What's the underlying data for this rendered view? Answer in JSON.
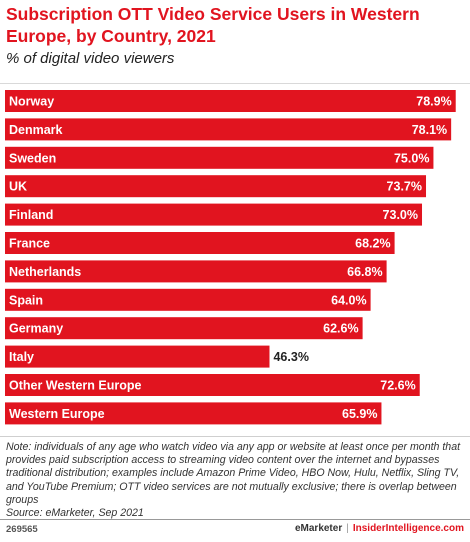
{
  "header": {
    "title": "Subscription OTT Video Service Users in Western Europe, by Country, 2021",
    "subtitle": "% of digital video viewers"
  },
  "chart_data": {
    "type": "bar",
    "orientation": "horizontal",
    "categories": [
      "Norway",
      "Denmark",
      "Sweden",
      "UK",
      "Finland",
      "France",
      "Netherlands",
      "Spain",
      "Germany",
      "Italy",
      "Other Western Europe",
      "Western Europe"
    ],
    "values": [
      78.9,
      78.1,
      75.0,
      73.7,
      73.0,
      68.2,
      66.8,
      64.0,
      62.6,
      46.3,
      72.6,
      65.9
    ],
    "value_labels": [
      "78.9%",
      "78.1%",
      "75.0%",
      "73.7%",
      "73.0%",
      "68.2%",
      "66.8%",
      "64.0%",
      "62.6%",
      "46.3%",
      "72.6%",
      "65.9%"
    ],
    "xlim": [
      0,
      80
    ],
    "bar_color": "#e1141f",
    "title": "Subscription OTT Video Service Users in Western Europe, by Country, 2021",
    "subtitle": "% of digital video viewers",
    "grid": false,
    "legend": "none"
  },
  "footer": {
    "note": "Note: individuals of any age who watch video via any app or website at least once per month that provides paid subscription access to streaming video content over the internet and bypasses traditional distribution; examples include Amazon Prime Video, HBO Now, Hulu, Netflix, Sling TV, and YouTube Premium; OTT video services are not mutually exclusive; there is overlap between groups",
    "source": "Source: eMarketer, Sep 2021",
    "chart_id": "269565",
    "brand": "eMarketer",
    "separator": "|",
    "url": "InsiderIntelligence.com"
  }
}
